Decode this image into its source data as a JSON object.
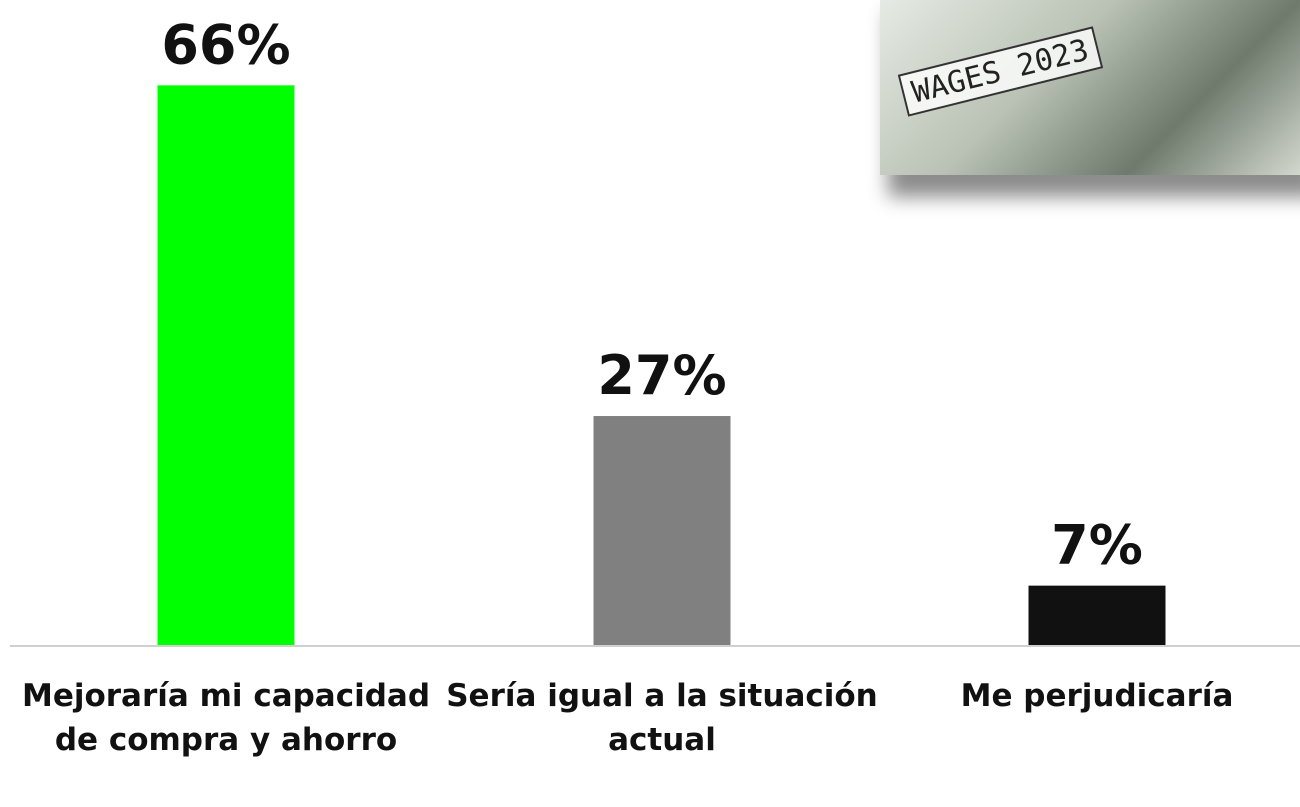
{
  "chart_data": {
    "type": "bar",
    "categories": [
      "Mejoraría mi capacidad de compra y ahorro",
      "Sería igual a la situación actual",
      "Me perjudicaría"
    ],
    "values": [
      66,
      27,
      7
    ],
    "value_labels": [
      "66%",
      "27%",
      "7%"
    ],
    "colors": [
      "#00ff00",
      "#808080",
      "#111111"
    ]
  },
  "image": {
    "text": "WAGES 2023"
  }
}
